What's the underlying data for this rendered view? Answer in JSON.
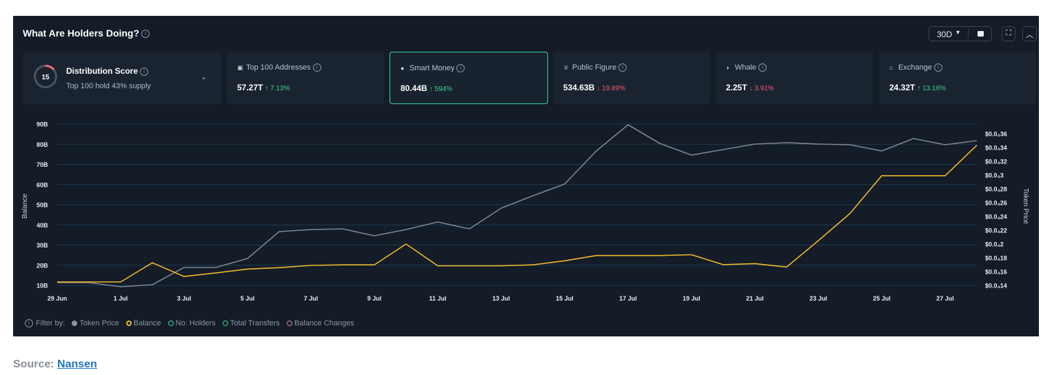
{
  "title": "What Are Holders Doing?",
  "controls": {
    "period": "30D"
  },
  "distribution": {
    "score": "15",
    "title": "Distribution Score",
    "subtitle": "Top 100 hold 43% supply"
  },
  "cards": [
    {
      "label": "Top 100 Addresses",
      "value": "57.27T",
      "change": "↑ 7.13%",
      "direction": "up"
    },
    {
      "label": "Smart Money",
      "value": "80.44B",
      "change": "↑ 594%",
      "direction": "up"
    },
    {
      "label": "Public Figure",
      "value": "534.63B",
      "change": "↓ 19.89%",
      "direction": "down"
    },
    {
      "label": "Whale",
      "value": "2.25T",
      "change": "↓ 3.91%",
      "direction": "down"
    },
    {
      "label": "Exchange",
      "value": "24.32T",
      "change": "↑ 13.16%",
      "direction": "up"
    }
  ],
  "legend": {
    "prefix": "Filter by:",
    "items": [
      "Token Price",
      "Balance",
      "No: Holders",
      "Total Transfers",
      "Balance Changes"
    ]
  },
  "source": {
    "label": "Source:",
    "link": "Nansen"
  },
  "colors": {
    "background": "#131c27",
    "token_price": "#7c8794",
    "balance": "#f0b72c",
    "active_border": "#3ecfa6"
  },
  "chart_data": {
    "type": "line",
    "ylabel": "Balance",
    "y2label": "Token Price",
    "ylim": [
      10,
      90
    ],
    "y2lim": [
      0.14,
      0.36
    ],
    "y_ticks": [
      "10B",
      "20B",
      "30B",
      "40B",
      "50B",
      "60B",
      "70B",
      "80B",
      "90B"
    ],
    "y2_ticks": [
      "$0.0₄14",
      "$0.0₄16",
      "$0.0₄18",
      "$0.0₄2",
      "$0.0₄22",
      "$0.0₄24",
      "$0.0₄26",
      "$0.0₄28",
      "$0.0₄3",
      "$0.0₄32",
      "$0.0₄34",
      "$0.0₄36"
    ],
    "x_ticks": [
      "29 Jun",
      "1 Jul",
      "3 Jul",
      "5 Jul",
      "7 Jul",
      "9 Jul",
      "11 Jul",
      "13 Jul",
      "15 Jul",
      "17 Jul",
      "19 Jul",
      "21 Jul",
      "23 Jul",
      "25 Jul",
      "27 Jul"
    ],
    "x": [
      "29 Jun",
      "30 Jun",
      "1 Jul",
      "2 Jul",
      "3 Jul",
      "4 Jul",
      "5 Jul",
      "6 Jul",
      "7 Jul",
      "8 Jul",
      "9 Jul",
      "10 Jul",
      "11 Jul",
      "12 Jul",
      "13 Jul",
      "14 Jul",
      "15 Jul",
      "16 Jul",
      "17 Jul",
      "18 Jul",
      "19 Jul",
      "20 Jul",
      "21 Jul",
      "22 Jul",
      "23 Jul",
      "24 Jul",
      "25 Jul",
      "26 Jul",
      "27 Jul",
      "28 Jul"
    ],
    "series": [
      {
        "name": "Token Price",
        "axis": "right",
        "color": "#7c8794",
        "values": [
          0.144,
          0.144,
          0.138,
          0.141,
          0.166,
          0.166,
          0.179,
          0.218,
          0.221,
          0.222,
          0.212,
          0.221,
          0.232,
          0.222,
          0.252,
          0.27,
          0.287,
          0.335,
          0.373,
          0.346,
          0.329,
          0.337,
          0.345,
          0.347,
          0.345,
          0.344,
          0.335,
          0.353,
          0.344,
          0.35
        ]
      },
      {
        "name": "Balance",
        "axis": "left",
        "color": "#f0b72c",
        "values": [
          11.7,
          11.7,
          11.7,
          21.2,
          14.4,
          16.2,
          18.1,
          18.8,
          19.9,
          20.2,
          20.2,
          30.5,
          19.7,
          19.7,
          19.7,
          20.2,
          22.2,
          24.8,
          24.8,
          24.8,
          25.2,
          20.3,
          20.8,
          19.1,
          32.2,
          45.7,
          64.4,
          64.4,
          64.4,
          79.5
        ]
      }
    ]
  }
}
